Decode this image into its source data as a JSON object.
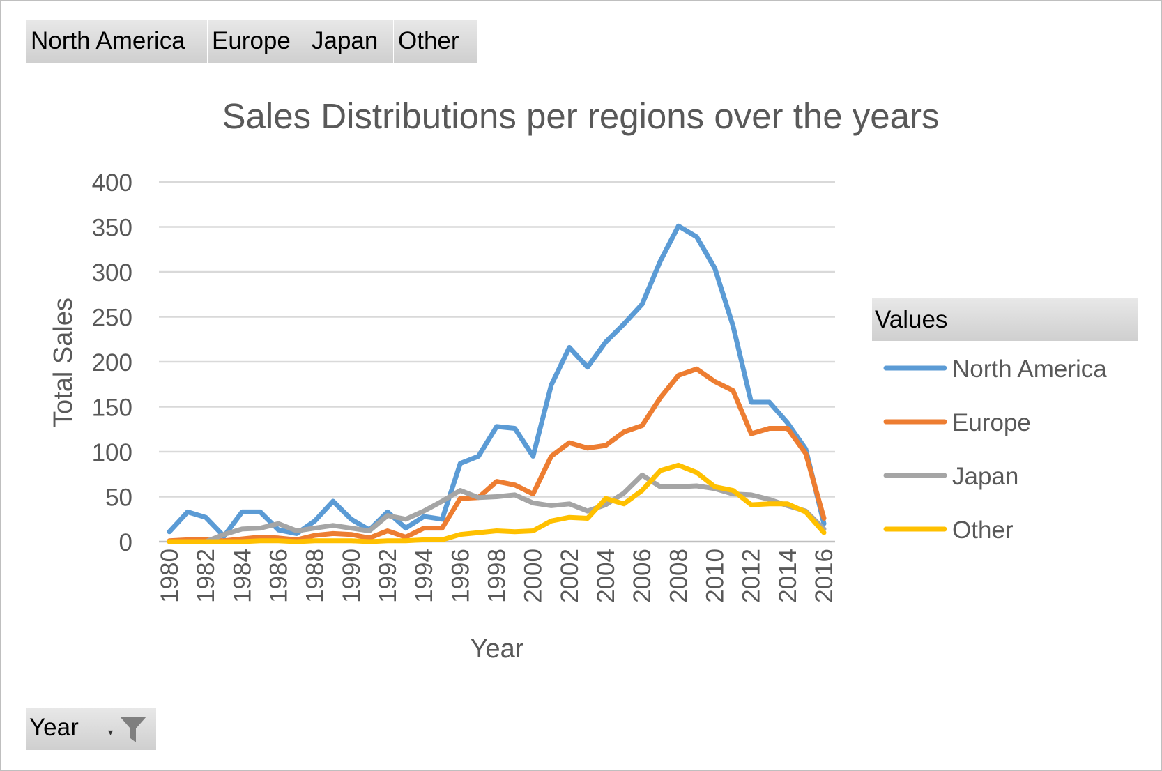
{
  "field_buttons": [
    "North America",
    "Europe",
    "Japan",
    "Other"
  ],
  "filter_field": {
    "label": "Year",
    "arrow": "▾"
  },
  "legend_header": "Values",
  "colors": {
    "North America": "#5b9bd5",
    "Europe": "#ed7d31",
    "Japan": "#a5a5a5",
    "Other": "#ffc000"
  },
  "chart_data": {
    "type": "line",
    "title": "Sales Distributions per regions over the years",
    "xlabel": "Year",
    "ylabel": "Total  Sales",
    "ylim": [
      0,
      400
    ],
    "yticks": [
      0,
      50,
      100,
      150,
      200,
      250,
      300,
      350,
      400
    ],
    "grid": true,
    "legend_position": "right",
    "x": [
      1980,
      1981,
      1982,
      1983,
      1984,
      1985,
      1986,
      1987,
      1988,
      1989,
      1990,
      1991,
      1992,
      1993,
      1994,
      1995,
      1996,
      1997,
      1998,
      1999,
      2000,
      2001,
      2002,
      2003,
      2004,
      2005,
      2006,
      2007,
      2008,
      2009,
      2010,
      2011,
      2012,
      2013,
      2014,
      2015,
      2016
    ],
    "xticks": [
      "1980",
      "1982",
      "1984",
      "1986",
      "1988",
      "1990",
      "1992",
      "1994",
      "1996",
      "1998",
      "2000",
      "2002",
      "2004",
      "2006",
      "2008",
      "2010",
      "2012",
      "2014",
      "2016"
    ],
    "series": [
      {
        "name": "North America",
        "values": [
          11,
          33,
          27,
          6,
          33,
          33,
          13,
          9,
          23,
          45,
          25,
          13,
          33,
          15,
          28,
          25,
          87,
          95,
          128,
          126,
          95,
          174,
          216,
          194,
          222,
          242,
          264,
          312,
          351,
          339,
          304,
          240,
          155,
          155,
          132,
          103,
          20
        ]
      },
      {
        "name": "Europe",
        "values": [
          1,
          2,
          2,
          1,
          3,
          5,
          4,
          2,
          7,
          9,
          8,
          4,
          12,
          5,
          15,
          15,
          48,
          49,
          67,
          63,
          53,
          95,
          110,
          104,
          107,
          122,
          129,
          160,
          185,
          192,
          178,
          168,
          120,
          126,
          126,
          98,
          26
        ]
      },
      {
        "name": "Japan",
        "values": [
          0,
          0,
          0,
          8,
          14,
          15,
          20,
          12,
          15,
          18,
          15,
          12,
          29,
          25,
          34,
          45,
          57,
          49,
          50,
          52,
          43,
          40,
          42,
          34,
          41,
          54,
          74,
          61,
          61,
          62,
          59,
          53,
          52,
          47,
          40,
          34,
          14
        ]
      },
      {
        "name": "Other",
        "values": [
          0,
          0,
          0,
          0,
          0,
          1,
          1,
          0,
          1,
          1,
          1,
          0,
          1,
          1,
          2,
          2,
          8,
          10,
          12,
          11,
          12,
          23,
          27,
          26,
          48,
          42,
          57,
          79,
          85,
          77,
          61,
          57,
          41,
          42,
          42,
          33,
          10
        ]
      }
    ]
  }
}
